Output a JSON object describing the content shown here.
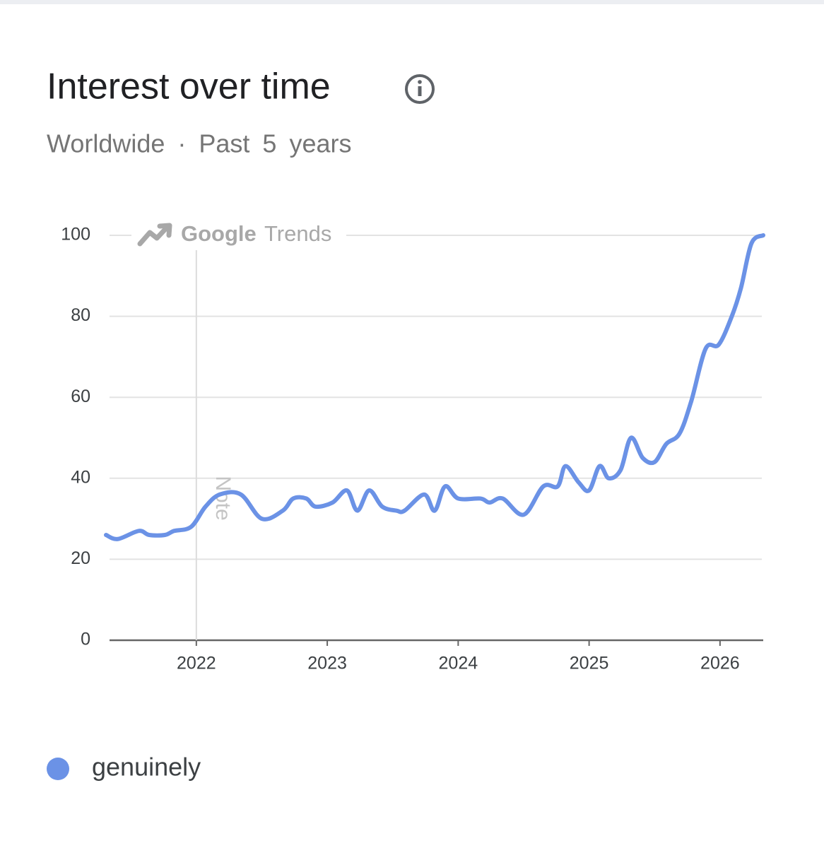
{
  "chart_data": {
    "type": "line",
    "title": "Interest over time",
    "subtitle": "Worldwide · Past 5 years",
    "watermark": {
      "brand": "Google",
      "product": "Trends"
    },
    "annotation": {
      "x": 2022,
      "label": "Note"
    },
    "x": [
      2021.31,
      2021.4,
      2021.56,
      2021.64,
      2021.76,
      2021.83,
      2021.96,
      2022.07,
      2022.18,
      2022.34,
      2022.5,
      2022.66,
      2022.74,
      2022.84,
      2022.91,
      2023.04,
      2023.15,
      2023.23,
      2023.32,
      2023.42,
      2023.53,
      2023.59,
      2023.74,
      2023.82,
      2023.9,
      2024.0,
      2024.17,
      2024.24,
      2024.34,
      2024.5,
      2024.65,
      2024.76,
      2024.82,
      2024.92,
      2025.0,
      2025.08,
      2025.15,
      2025.24,
      2025.32,
      2025.41,
      2025.5,
      2025.59,
      2025.69,
      2025.78,
      2025.89,
      2025.99,
      2026.09,
      2026.16,
      2026.24,
      2026.33
    ],
    "series": [
      {
        "name": "genuinely",
        "color": "#6b92e6",
        "values": [
          26,
          25,
          27,
          26,
          26,
          27,
          28,
          33,
          36,
          36,
          30,
          32,
          35,
          35,
          33,
          34,
          37,
          32,
          37,
          33,
          32,
          32,
          36,
          32,
          38,
          35,
          35,
          34,
          35,
          31,
          38,
          38,
          43,
          39,
          37,
          43,
          40,
          42,
          50,
          45,
          44,
          48.5,
          51,
          59,
          72,
          73,
          80,
          87,
          98,
          100
        ]
      }
    ],
    "xlim": [
      2021.31,
      2026.33
    ],
    "xticks": [
      2022,
      2023,
      2024,
      2025,
      2026
    ],
    "ylim": [
      0,
      100
    ],
    "yticks": [
      0,
      20,
      40,
      60,
      80,
      100
    ],
    "grid": true
  }
}
